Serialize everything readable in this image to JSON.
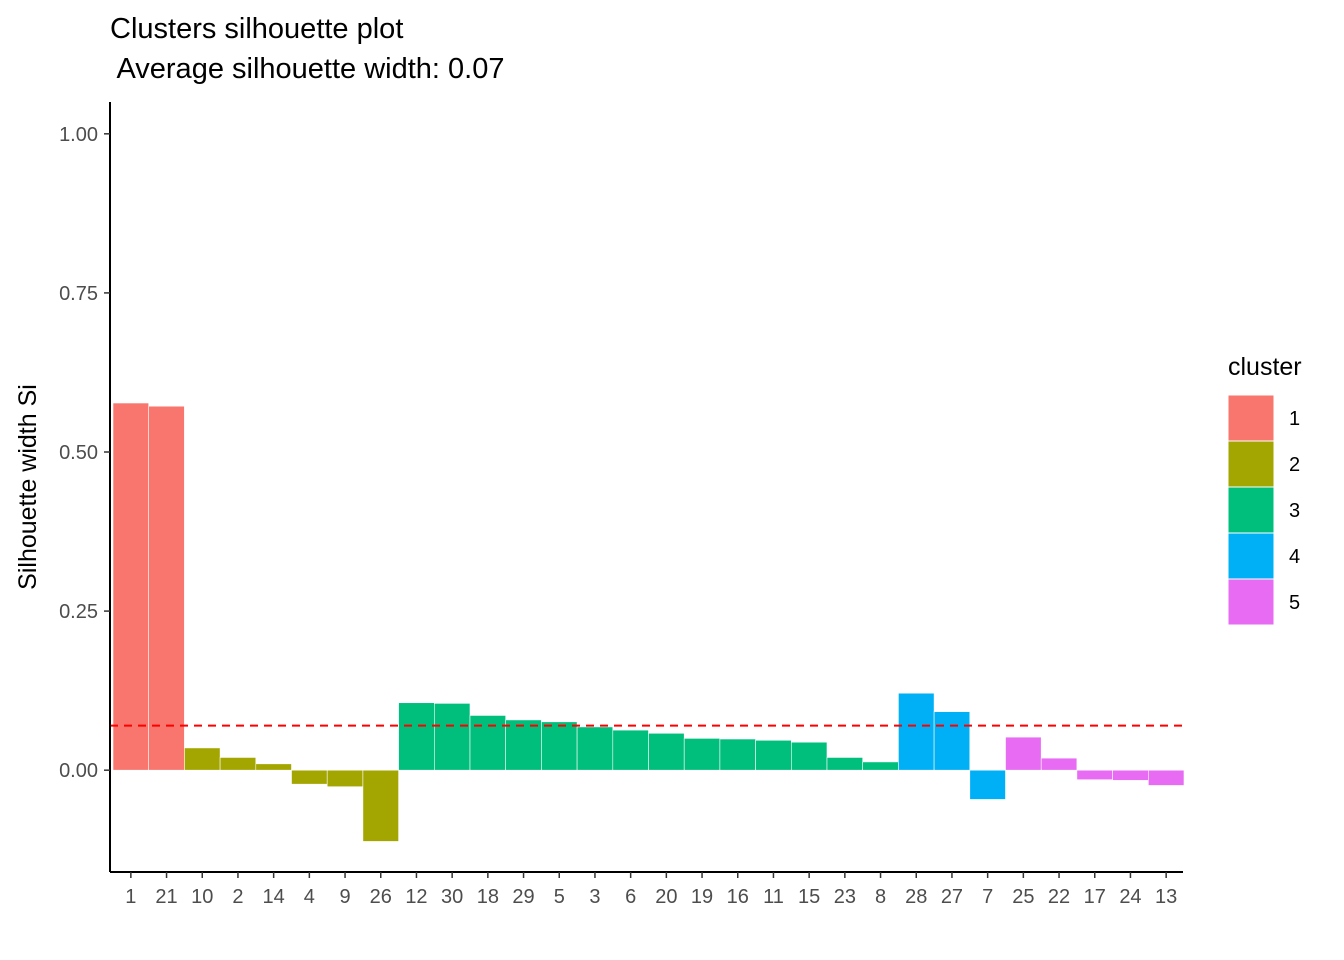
{
  "chart_data": {
    "type": "bar",
    "title": "Clusters silhouette plot",
    "subtitle": " Average silhouette width: 0.07",
    "xlabel": "",
    "ylabel": "Silhouette width Si",
    "ylim": [
      -0.16,
      1.05
    ],
    "yticks": [
      "1.00",
      "0.75",
      "0.50",
      "0.25",
      "0.00"
    ],
    "ytick_values": [
      1.0,
      0.75,
      0.5,
      0.25,
      0.0
    ],
    "average_line": 0.07,
    "categories": [
      "1",
      "21",
      "10",
      "2",
      "14",
      "4",
      "9",
      "26",
      "12",
      "30",
      "18",
      "29",
      "5",
      "3",
      "6",
      "20",
      "19",
      "16",
      "11",
      "15",
      "23",
      "8",
      "28",
      "27",
      "7",
      "25",
      "22",
      "17",
      "24",
      "13"
    ],
    "values": [
      0.577,
      0.572,
      0.035,
      0.02,
      0.01,
      -0.022,
      -0.026,
      -0.112,
      0.106,
      0.105,
      0.086,
      0.079,
      0.076,
      0.068,
      0.063,
      0.058,
      0.05,
      0.049,
      0.047,
      0.044,
      0.02,
      0.013,
      0.121,
      0.092,
      -0.046,
      0.052,
      0.019,
      -0.015,
      -0.016,
      -0.024
    ],
    "clusters": [
      1,
      1,
      2,
      2,
      2,
      2,
      2,
      2,
      3,
      3,
      3,
      3,
      3,
      3,
      3,
      3,
      3,
      3,
      3,
      3,
      3,
      3,
      4,
      4,
      4,
      5,
      5,
      5,
      5,
      5
    ],
    "legend": {
      "title": "cluster",
      "position": "right",
      "items": [
        {
          "label": "1",
          "color": "#F8766D"
        },
        {
          "label": "2",
          "color": "#A3A500"
        },
        {
          "label": "3",
          "color": "#00BF7D"
        },
        {
          "label": "4",
          "color": "#00B0F6"
        },
        {
          "label": "5",
          "color": "#E76BF3"
        }
      ]
    },
    "average_line_color": "#FF0000",
    "grid": false
  }
}
